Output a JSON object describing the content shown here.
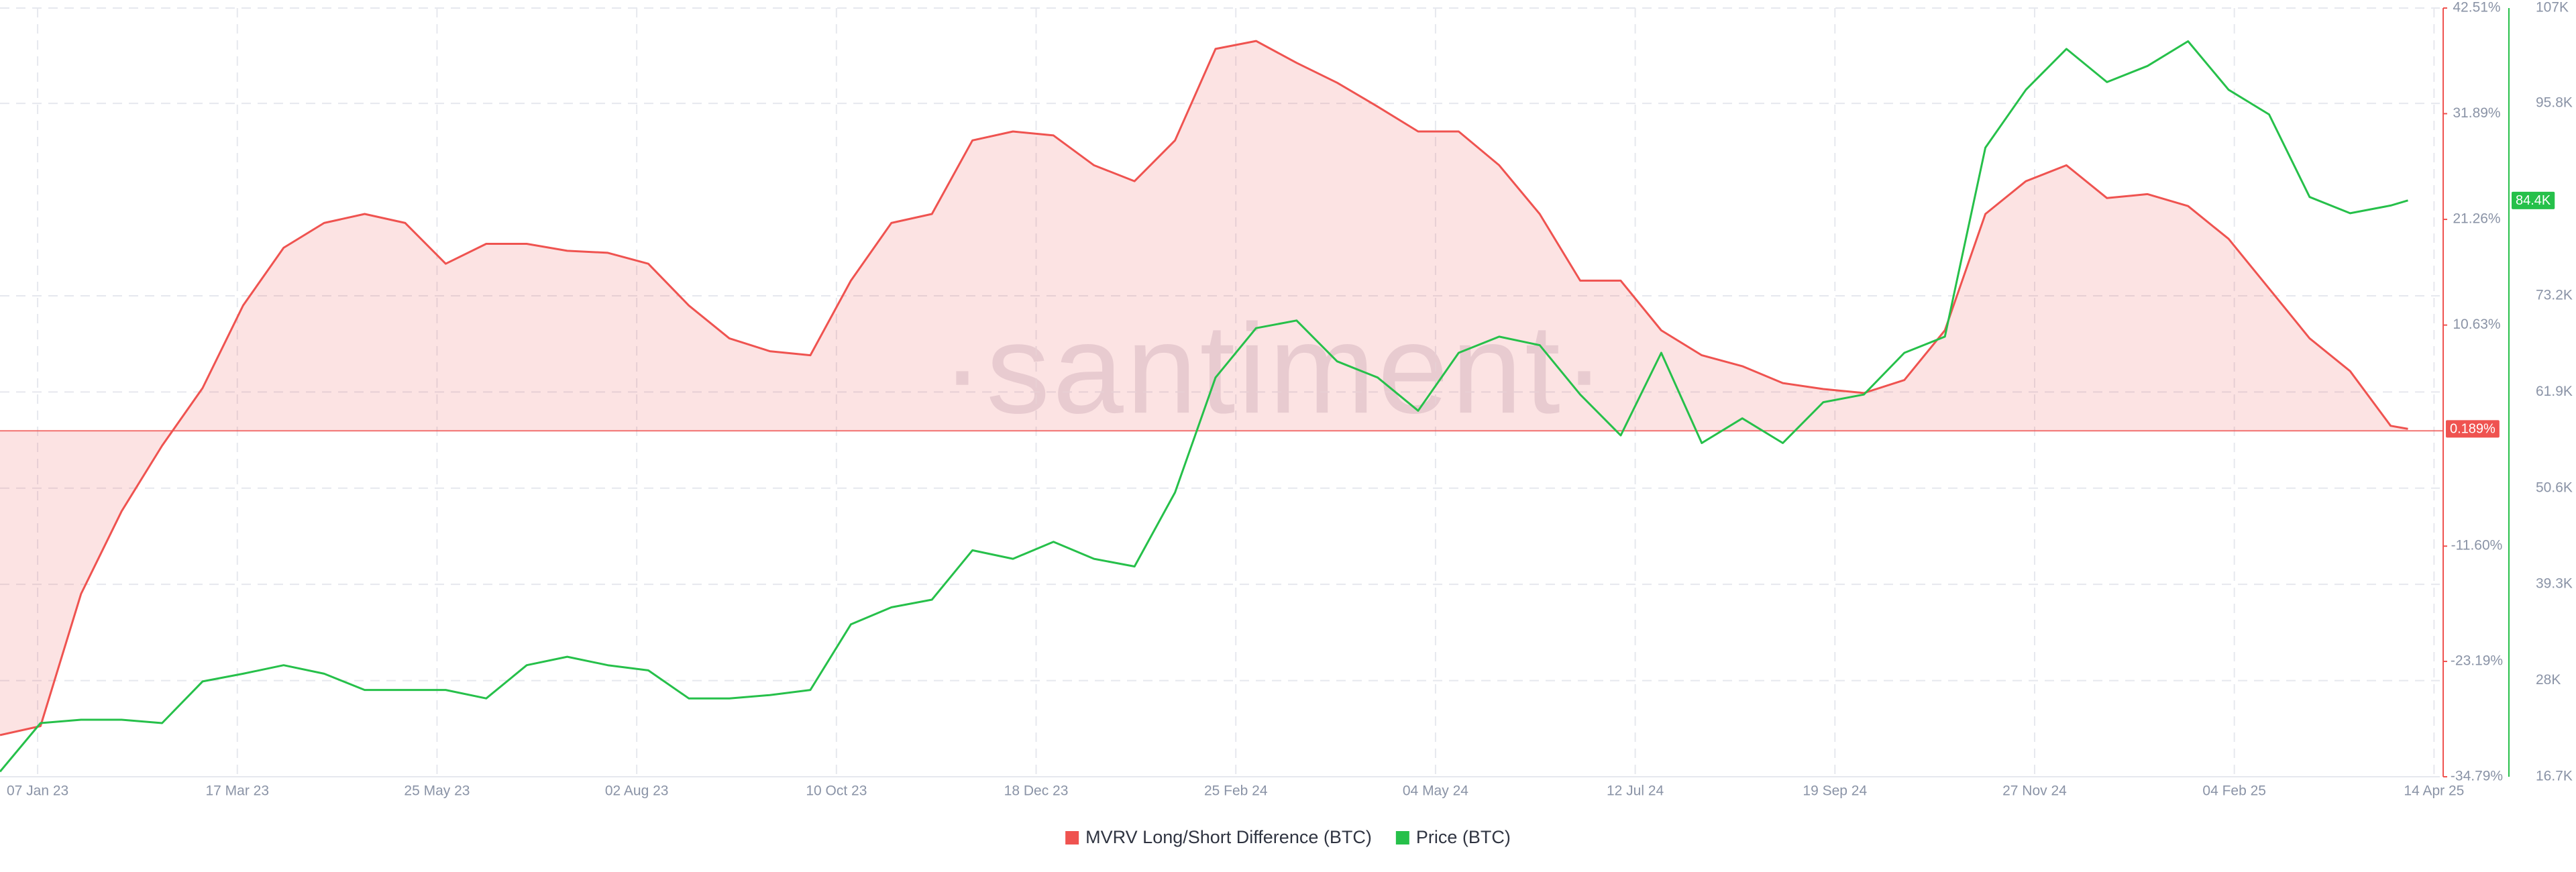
{
  "chart_data": {
    "type": "line",
    "watermark": "·santiment·",
    "x": [
      "2022-12-25",
      "2023-01-08",
      "2023-01-22",
      "2023-02-05",
      "2023-02-19",
      "2023-03-05",
      "2023-03-19",
      "2023-04-02",
      "2023-04-16",
      "2023-04-30",
      "2023-05-14",
      "2023-05-28",
      "2023-06-11",
      "2023-06-25",
      "2023-07-09",
      "2023-07-23",
      "2023-08-06",
      "2023-08-20",
      "2023-09-03",
      "2023-09-17",
      "2023-10-01",
      "2023-10-15",
      "2023-10-29",
      "2023-11-12",
      "2023-11-26",
      "2023-12-10",
      "2023-12-24",
      "2024-01-07",
      "2024-01-21",
      "2024-02-04",
      "2024-02-18",
      "2024-03-03",
      "2024-03-17",
      "2024-03-31",
      "2024-04-14",
      "2024-04-28",
      "2024-05-12",
      "2024-05-26",
      "2024-06-09",
      "2024-06-23",
      "2024-07-07",
      "2024-07-21",
      "2024-08-04",
      "2024-08-18",
      "2024-09-01",
      "2024-09-15",
      "2024-09-29",
      "2024-10-13",
      "2024-10-27",
      "2024-11-10",
      "2024-11-24",
      "2024-12-08",
      "2024-12-22",
      "2025-01-05",
      "2025-01-19",
      "2025-02-02",
      "2025-02-16",
      "2025-03-02",
      "2025-03-16",
      "2025-03-30",
      "2025-04-05"
    ],
    "xlim": [
      "2022-12-25",
      "2025-04-16"
    ],
    "xticks": [
      {
        "value": "2023-01-07",
        "label": "07 Jan 23"
      },
      {
        "value": "2023-03-17",
        "label": "17 Mar 23"
      },
      {
        "value": "2023-05-25",
        "label": "25 May 23"
      },
      {
        "value": "2023-08-02",
        "label": "02 Aug 23"
      },
      {
        "value": "2023-10-10",
        "label": "10 Oct 23"
      },
      {
        "value": "2023-12-18",
        "label": "18 Dec 23"
      },
      {
        "value": "2024-02-25",
        "label": "25 Feb 24"
      },
      {
        "value": "2024-05-04",
        "label": "04 May 24"
      },
      {
        "value": "2024-07-12",
        "label": "12 Jul 24"
      },
      {
        "value": "2024-09-19",
        "label": "19 Sep 24"
      },
      {
        "value": "2024-11-27",
        "label": "27 Nov 24"
      },
      {
        "value": "2025-02-04",
        "label": "04 Feb 25"
      },
      {
        "value": "2025-04-14",
        "label": "14 Apr 25"
      }
    ],
    "ylim": [
      -34.79,
      42.51
    ],
    "yticks": [
      {
        "value": 42.51,
        "label": "42.51%"
      },
      {
        "value": 31.89,
        "label": "31.89%"
      },
      {
        "value": 21.26,
        "label": "21.26%"
      },
      {
        "value": 10.63,
        "label": "10.63%"
      },
      {
        "value": -11.6,
        "label": "-11.60%"
      },
      {
        "value": -23.19,
        "label": "-23.19%"
      },
      {
        "value": -34.79,
        "label": "-34.79%"
      }
    ],
    "y2lim": [
      16700,
      107000
    ],
    "y2ticks": [
      {
        "value": 107000,
        "label": "107K"
      },
      {
        "value": 95800,
        "label": "95.8K"
      },
      {
        "value": 73200,
        "label": "73.2K"
      },
      {
        "value": 61900,
        "label": "61.9K"
      },
      {
        "value": 50600,
        "label": "50.6K"
      },
      {
        "value": 39300,
        "label": "39.3K"
      },
      {
        "value": 28000,
        "label": "28K"
      },
      {
        "value": 16700,
        "label": "16.7K"
      }
    ],
    "grid": true,
    "legend": "bottom",
    "series": [
      {
        "name": "MVRV Long/Short Difference (BTC)",
        "color": "#ef5350",
        "current_label": "0.189%",
        "values": [
          -30.6,
          -29.7,
          -16.4,
          -8.1,
          -1.5,
          4.3,
          12.6,
          18.4,
          20.9,
          21.8,
          20.9,
          16.8,
          18.8,
          18.8,
          18.1,
          17.9,
          16.8,
          12.6,
          9.3,
          8.0,
          7.6,
          15.1,
          20.9,
          21.8,
          29.2,
          30.1,
          29.7,
          26.7,
          25.1,
          29.2,
          38.4,
          39.2,
          37.0,
          35.0,
          32.6,
          30.1,
          30.1,
          26.7,
          21.8,
          15.1,
          15.1,
          10.1,
          7.6,
          6.5,
          4.8,
          4.2,
          3.8,
          5.1,
          10.1,
          21.8,
          25.1,
          26.7,
          23.4,
          23.8,
          22.6,
          19.3,
          14.3,
          9.3,
          6.0,
          0.5,
          0.189
        ]
      },
      {
        "name": "Price (BTC)",
        "color": "#26c04a",
        "axis": "y2",
        "current_label": "84.4K",
        "values": [
          17300,
          23000,
          23400,
          23400,
          23000,
          27900,
          28800,
          29800,
          28800,
          26900,
          26900,
          26900,
          25900,
          29800,
          30800,
          29800,
          29200,
          25900,
          25900,
          26300,
          26900,
          34600,
          36600,
          37500,
          43300,
          42300,
          44300,
          42300,
          41400,
          50100,
          63600,
          69400,
          70300,
          65500,
          63600,
          59700,
          66500,
          68400,
          67400,
          61600,
          56800,
          66500,
          55900,
          58800,
          55900,
          60700,
          61600,
          66500,
          68400,
          90600,
          97400,
          102200,
          98300,
          100200,
          103100,
          97400,
          94500,
          84800,
          82900,
          83800,
          84400
        ]
      }
    ]
  }
}
